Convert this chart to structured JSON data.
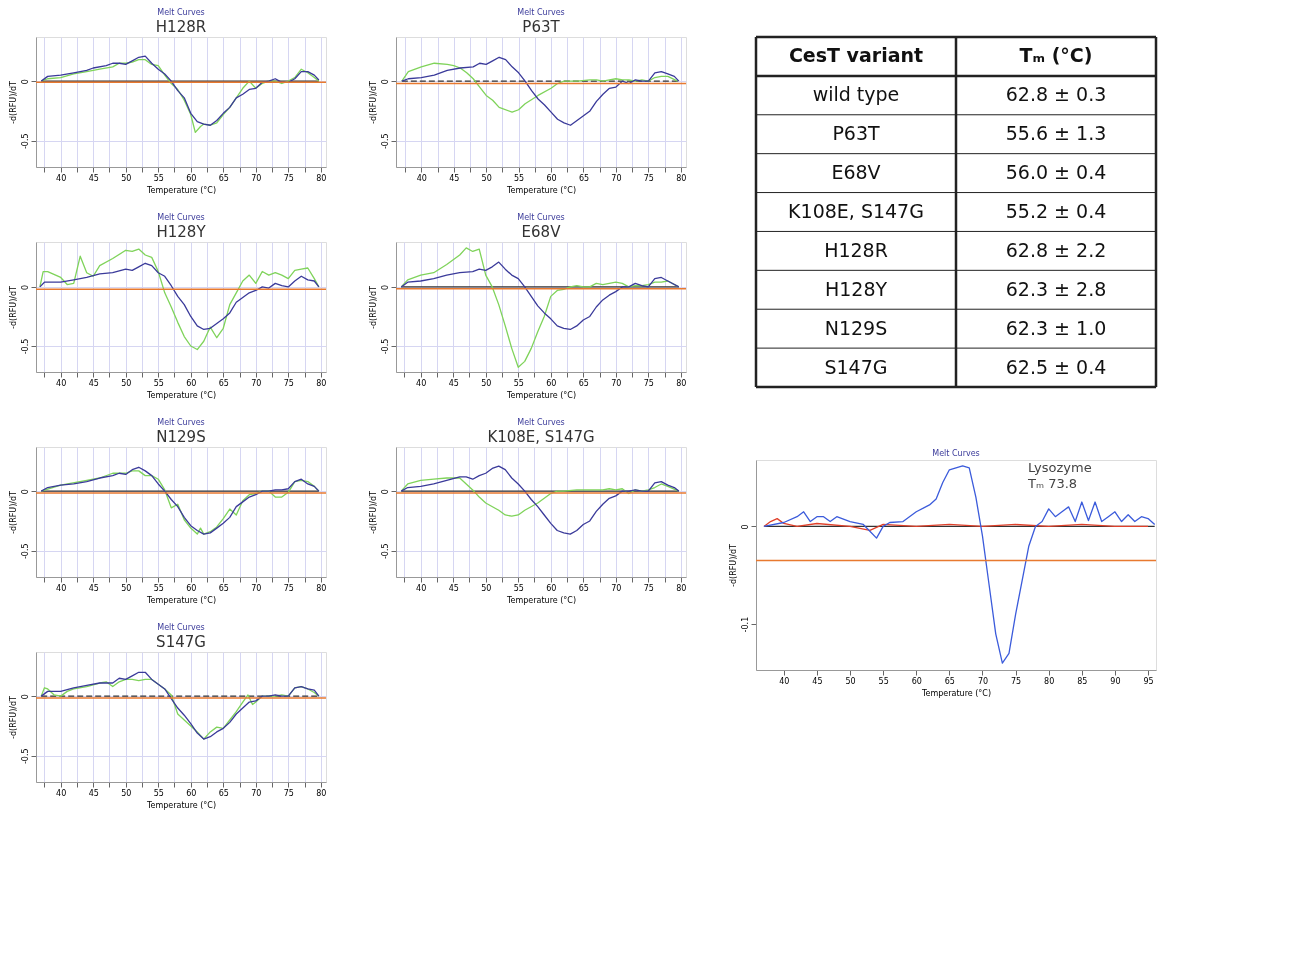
{
  "chart_data": [
    {
      "type": "line",
      "title": "Melt Curves",
      "subtitle": "H128R",
      "xlabel": "Temperature (°C)",
      "ylabel": "-d(RFU)/dT",
      "xlim": [
        36.2,
        80.8
      ],
      "ylim": [
        -0.72,
        0.37
      ],
      "grid": true,
      "xticks": [
        {
          "value": 37.5,
          "label": null
        },
        40,
        {
          "value": 42.5,
          "label": null
        },
        45,
        {
          "value": 47.5,
          "label": null
        },
        50,
        {
          "value": 52.5,
          "label": null
        },
        55,
        {
          "value": 57.5,
          "label": null
        },
        60,
        {
          "value": 62.5,
          "label": null
        },
        65,
        {
          "value": 67.5,
          "label": null
        },
        70,
        {
          "value": 72.5,
          "label": null
        },
        75,
        {
          "value": 77.5,
          "label": null
        },
        80
      ],
      "yticks": [
        0,
        -0.5
      ],
      "ref_lines": [
        {
          "axis": "y",
          "value": -0.01,
          "color": "#e8792f",
          "line_style": "solid"
        }
      ],
      "series": [
        {
          "color": "#333333",
          "line_style": "solid",
          "x": [
            37,
            79.7
          ],
          "values": [
            0,
            0
          ]
        },
        {
          "color": "#7fd35a",
          "line_style": "solid",
          "x": [
            37,
            38,
            40,
            42,
            44,
            46,
            48,
            49,
            50,
            51,
            52,
            53,
            54,
            55,
            56,
            57,
            58,
            59,
            60,
            60.7,
            61.5,
            62,
            63,
            64,
            65,
            66,
            67,
            68,
            69,
            70,
            71,
            72,
            73,
            74,
            75,
            76,
            77,
            78,
            79,
            79.7
          ],
          "values": [
            0,
            0.02,
            0.03,
            0.06,
            0.08,
            0.1,
            0.12,
            0.15,
            0.15,
            0.16,
            0.18,
            0.18,
            0.14,
            0.13,
            0.05,
            -0.02,
            -0.07,
            -0.16,
            -0.28,
            -0.43,
            -0.38,
            -0.36,
            -0.37,
            -0.35,
            -0.28,
            -0.22,
            -0.14,
            -0.06,
            0,
            -0.06,
            -0.02,
            0,
            0,
            -0.02,
            0,
            0.03,
            0.1,
            0.07,
            0.03,
            0
          ]
        },
        {
          "color": "#3a3a9a",
          "line_style": "solid",
          "x": [
            37,
            38,
            40,
            42,
            44,
            45,
            47,
            48,
            49,
            50,
            51,
            52,
            53,
            54,
            55,
            56,
            57,
            58,
            59,
            60,
            61,
            62,
            63,
            64,
            65,
            66,
            67,
            68,
            69,
            70,
            71,
            72,
            73,
            74,
            75,
            76,
            77,
            78,
            79,
            79.7
          ],
          "values": [
            0,
            0.04,
            0.05,
            0.07,
            0.09,
            0.11,
            0.13,
            0.15,
            0.15,
            0.14,
            0.17,
            0.2,
            0.21,
            0.15,
            0.1,
            0.06,
            0,
            -0.08,
            -0.14,
            -0.27,
            -0.34,
            -0.36,
            -0.37,
            -0.33,
            -0.27,
            -0.22,
            -0.14,
            -0.11,
            -0.07,
            -0.06,
            -0.01,
            0,
            0.02,
            -0.01,
            -0.01,
            0.02,
            0.08,
            0.08,
            0.05,
            0.01
          ]
        }
      ]
    },
    {
      "type": "line",
      "title": "Melt Curves",
      "subtitle": "P63T",
      "xlabel": "Temperature (°C)",
      "ylabel": "-d(RFU)/dT",
      "xlim": [
        36.1,
        80.8
      ],
      "ylim": [
        -0.72,
        0.37
      ],
      "grid": true,
      "xticks": [
        {
          "value": 37.5,
          "label": null
        },
        40,
        {
          "value": 42.5,
          "label": null
        },
        45,
        {
          "value": 47.5,
          "label": null
        },
        50,
        {
          "value": 52.5,
          "label": null
        },
        55,
        {
          "value": 57.5,
          "label": null
        },
        60,
        {
          "value": 62.5,
          "label": null
        },
        65,
        {
          "value": 67.5,
          "label": null
        },
        70,
        {
          "value": 72.5,
          "label": null
        },
        75,
        {
          "value": 77.5,
          "label": null
        },
        80
      ],
      "yticks": [
        0,
        -0.5
      ],
      "ref_lines": [
        {
          "axis": "y",
          "value": -0.02,
          "color": "#e8792f",
          "line_style": "solid"
        }
      ],
      "series": [
        {
          "color": "#333333",
          "line_style": "dashed",
          "x": [
            37,
            79.7
          ],
          "values": [
            0,
            0
          ]
        },
        {
          "color": "#7fd35a",
          "line_style": "solid",
          "x": [
            37,
            38,
            40,
            42,
            44,
            45,
            46,
            47,
            48,
            49,
            50,
            51,
            52,
            54,
            55,
            56,
            58,
            60,
            61,
            62,
            64,
            66,
            67,
            68,
            69,
            70,
            71,
            72,
            73,
            74,
            75,
            76,
            77,
            78,
            79.5
          ],
          "values": [
            0,
            0.08,
            0.12,
            0.15,
            0.14,
            0.13,
            0.11,
            0.07,
            0.02,
            -0.05,
            -0.12,
            -0.16,
            -0.22,
            -0.26,
            -0.24,
            -0.19,
            -0.12,
            -0.06,
            -0.02,
            0,
            0,
            0.01,
            0.01,
            0,
            0.01,
            0.02,
            0.01,
            0.01,
            0,
            0.01,
            0,
            0.03,
            0.04,
            0.04,
            0
          ]
        },
        {
          "color": "#3a3a9a",
          "line_style": "solid",
          "x": [
            37,
            38,
            40,
            42,
            44,
            46,
            48,
            49,
            50,
            51,
            52,
            53,
            54,
            55,
            56,
            57,
            58,
            59,
            60,
            61,
            62,
            63,
            64,
            65,
            66,
            67,
            68,
            69,
            70,
            71,
            72,
            73,
            74,
            75,
            76,
            77,
            78,
            79,
            79.7
          ],
          "values": [
            0,
            0.02,
            0.03,
            0.05,
            0.09,
            0.11,
            0.12,
            0.15,
            0.14,
            0.17,
            0.2,
            0.18,
            0.12,
            0.07,
            0,
            -0.08,
            -0.15,
            -0.2,
            -0.26,
            -0.32,
            -0.35,
            -0.37,
            -0.33,
            -0.29,
            -0.25,
            -0.17,
            -0.11,
            -0.06,
            -0.05,
            0,
            -0.02,
            0.01,
            0,
            0,
            0.07,
            0.08,
            0.06,
            0.04,
            0
          ]
        }
      ]
    },
    {
      "type": "other",
      "xlabel": "CesT variant",
      "ylabel": "Tₘ (°C)",
      "categories": [
        "wild type",
        "P63T",
        "E68V",
        "K108E, S147G",
        "H128R",
        "H128Y",
        "N129S",
        "S147G"
      ],
      "value_labels": [
        "62.8 ± 0.3",
        "55.6 ± 1.3",
        "56.0 ± 0.4",
        "55.2 ± 0.4",
        "62.8 ± 2.2",
        "62.3 ± 2.8",
        "62.3 ± 1.0",
        "62.5 ± 0.4"
      ]
    },
    {
      "type": "line",
      "title": "Melt Curves",
      "subtitle": "H128Y",
      "xlabel": "Temperature (°C)",
      "ylabel": "-d(RFU)/dT",
      "xlim": [
        36.2,
        80.8
      ],
      "ylim": [
        -0.72,
        0.38
      ],
      "grid": true,
      "xticks": [
        {
          "value": 37.5,
          "label": null
        },
        40,
        {
          "value": 42.5,
          "label": null
        },
        45,
        {
          "value": 47.5,
          "label": null
        },
        50,
        {
          "value": 52.5,
          "label": null
        },
        55,
        {
          "value": 57.5,
          "label": null
        },
        60,
        {
          "value": 62.5,
          "label": null
        },
        65,
        {
          "value": 67.5,
          "label": null
        },
        70,
        {
          "value": 72.5,
          "label": null
        },
        75,
        {
          "value": 77.5,
          "label": null
        },
        80
      ],
      "yticks": [
        0,
        -0.5
      ],
      "ref_lines": [
        {
          "axis": "y",
          "value": -0.02,
          "color": "#e8792f",
          "line_style": "solid"
        }
      ],
      "series": [
        {
          "color": "#7fd35a",
          "line_style": "solid",
          "x": [
            36.8,
            37.3,
            38,
            40,
            41,
            42,
            43,
            44,
            45,
            46,
            48,
            50,
            51,
            52,
            53,
            54,
            55,
            56,
            57,
            58,
            59,
            60,
            61,
            62,
            63,
            64,
            65,
            66,
            67,
            68,
            69,
            70,
            71,
            72,
            73,
            74,
            75,
            76,
            77,
            78,
            79,
            79.7
          ],
          "values": [
            0,
            0.13,
            0.13,
            0.08,
            0.02,
            0.03,
            0.26,
            0.12,
            0.09,
            0.18,
            0.24,
            0.31,
            0.3,
            0.32,
            0.27,
            0.25,
            0.13,
            -0.05,
            -0.17,
            -0.3,
            -0.42,
            -0.5,
            -0.53,
            -0.46,
            -0.34,
            -0.43,
            -0.35,
            -0.15,
            -0.05,
            0.05,
            0.1,
            0.03,
            0.13,
            0.1,
            0.12,
            0.1,
            0.07,
            0.14,
            0.15,
            0.16,
            0.07,
            0
          ]
        },
        {
          "color": "#3a3a9a",
          "line_style": "solid",
          "x": [
            36.8,
            37.5,
            40,
            42,
            44,
            46,
            48,
            50,
            51,
            52,
            53,
            54,
            55,
            56,
            57,
            58,
            59,
            60,
            61,
            62,
            63,
            64,
            65,
            66,
            67,
            68,
            69,
            70,
            71,
            72,
            73,
            74,
            75,
            76,
            77,
            78,
            79,
            79.7
          ],
          "values": [
            0,
            0.04,
            0.04,
            0.06,
            0.08,
            0.11,
            0.12,
            0.15,
            0.14,
            0.17,
            0.2,
            0.18,
            0.12,
            0.09,
            0.01,
            -0.08,
            -0.15,
            -0.25,
            -0.33,
            -0.36,
            -0.35,
            -0.31,
            -0.27,
            -0.22,
            -0.13,
            -0.09,
            -0.05,
            -0.03,
            0,
            -0.01,
            0.03,
            0.01,
            0,
            0.05,
            0.09,
            0.06,
            0.05,
            0
          ]
        }
      ]
    },
    {
      "type": "line",
      "title": "Melt Curves",
      "subtitle": "E68V",
      "xlabel": "Temperature (°C)",
      "ylabel": "-d(RFU)/dT",
      "xlim": [
        36.2,
        80.8
      ],
      "ylim": [
        -0.72,
        0.38
      ],
      "grid": true,
      "xticks": [
        {
          "value": 37.5,
          "label": null
        },
        40,
        {
          "value": 42.5,
          "label": null
        },
        45,
        {
          "value": 47.5,
          "label": null
        },
        50,
        {
          "value": 52.5,
          "label": null
        },
        55,
        {
          "value": 57.5,
          "label": null
        },
        60,
        {
          "value": 62.5,
          "label": null
        },
        65,
        {
          "value": 67.5,
          "label": null
        },
        70,
        {
          "value": 72.5,
          "label": null
        },
        75,
        {
          "value": 77.5,
          "label": null
        },
        80
      ],
      "yticks": [
        0,
        -0.5
      ],
      "ref_lines": [
        {
          "axis": "y",
          "value": -0.015,
          "color": "#e8792f",
          "line_style": "solid"
        }
      ],
      "series": [
        {
          "color": "#333333",
          "line_style": "solid",
          "x": [
            37,
            79.7
          ],
          "values": [
            0,
            0
          ]
        },
        {
          "color": "#7fd35a",
          "line_style": "solid",
          "x": [
            37,
            38,
            40,
            42,
            44,
            46,
            47,
            48,
            49,
            50,
            51,
            52,
            53,
            54,
            55,
            56,
            57,
            58,
            59,
            60,
            61,
            62,
            63,
            64,
            65,
            66,
            67,
            68,
            69,
            70,
            71,
            72,
            73,
            74,
            75,
            76,
            77,
            78,
            79.7
          ],
          "values": [
            0,
            0.06,
            0.1,
            0.12,
            0.19,
            0.27,
            0.33,
            0.3,
            0.32,
            0.1,
            0,
            -0.15,
            -0.33,
            -0.52,
            -0.68,
            -0.63,
            -0.52,
            -0.38,
            -0.25,
            -0.08,
            -0.03,
            -0.02,
            0,
            0.01,
            0,
            0,
            0.03,
            0.02,
            0.03,
            0.04,
            0.03,
            0,
            0.01,
            0.01,
            0.02,
            0.04,
            0.04,
            0.05,
            0
          ]
        },
        {
          "color": "#3a3a9a",
          "line_style": "solid",
          "x": [
            37,
            38,
            40,
            42,
            44,
            46,
            48,
            49,
            50,
            51,
            52,
            53,
            54,
            55,
            56,
            57,
            58,
            59,
            60,
            61,
            62,
            63,
            64,
            65,
            66,
            67,
            68,
            69,
            70,
            71,
            72,
            73,
            74,
            75,
            76,
            77,
            78,
            79.7
          ],
          "values": [
            0,
            0.04,
            0.05,
            0.07,
            0.1,
            0.12,
            0.13,
            0.15,
            0.14,
            0.17,
            0.21,
            0.15,
            0.1,
            0.07,
            0,
            -0.08,
            -0.16,
            -0.22,
            -0.27,
            -0.33,
            -0.35,
            -0.36,
            -0.33,
            -0.28,
            -0.25,
            -0.17,
            -0.11,
            -0.07,
            -0.04,
            0,
            0,
            0.03,
            0.01,
            0,
            0.07,
            0.08,
            0.05,
            0
          ]
        }
      ]
    },
    {
      "type": "line",
      "title": "Melt Curves",
      "subtitle": "N129S",
      "xlabel": "Temperature (°C)",
      "ylabel": "-d(RFU)/dT",
      "xlim": [
        36.2,
        80.8
      ],
      "ylim": [
        -0.72,
        0.37
      ],
      "grid": true,
      "xticks": [
        {
          "value": 37.5,
          "label": null
        },
        40,
        {
          "value": 42.5,
          "label": null
        },
        45,
        {
          "value": 47.5,
          "label": null
        },
        50,
        {
          "value": 52.5,
          "label": null
        },
        55,
        {
          "value": 57.5,
          "label": null
        },
        60,
        {
          "value": 62.5,
          "label": null
        },
        65,
        {
          "value": 67.5,
          "label": null
        },
        70,
        {
          "value": 72.5,
          "label": null
        },
        75,
        {
          "value": 77.5,
          "label": null
        },
        80
      ],
      "yticks": [
        0,
        -0.5
      ],
      "ref_lines": [
        {
          "axis": "y",
          "value": -0.015,
          "color": "#e8792f",
          "line_style": "solid"
        }
      ],
      "series": [
        {
          "color": "#333333",
          "line_style": "solid",
          "x": [
            37,
            79.7
          ],
          "values": [
            0,
            0
          ]
        },
        {
          "color": "#7fd35a",
          "line_style": "solid",
          "x": [
            37,
            40,
            44,
            46,
            48,
            50,
            51,
            52,
            53,
            54,
            55,
            56,
            57,
            58,
            59,
            60,
            61,
            61.5,
            62,
            63,
            64,
            65,
            66,
            67,
            68,
            69,
            70,
            71,
            72,
            73,
            74,
            75,
            76,
            77,
            78,
            79,
            79.7
          ],
          "values": [
            0,
            0.05,
            0.09,
            0.11,
            0.15,
            0.15,
            0.17,
            0.17,
            0.13,
            0.13,
            0.1,
            0.01,
            -0.14,
            -0.11,
            -0.24,
            -0.31,
            -0.36,
            -0.31,
            -0.36,
            -0.34,
            -0.3,
            -0.23,
            -0.15,
            -0.2,
            -0.08,
            -0.03,
            -0.02,
            0,
            0,
            -0.05,
            -0.05,
            -0.01,
            0.08,
            0.09,
            0.08,
            0.04,
            0
          ]
        },
        {
          "color": "#3a3a9a",
          "line_style": "solid",
          "x": [
            37,
            38,
            40,
            42,
            44,
            46,
            48,
            49,
            50,
            51,
            52,
            53,
            54,
            55,
            56,
            57,
            58,
            59,
            60,
            61,
            62,
            63,
            64,
            65,
            66,
            67,
            68,
            69,
            70,
            71,
            72,
            73,
            74,
            75,
            76,
            77,
            78,
            79,
            79.7
          ],
          "values": [
            0,
            0.03,
            0.05,
            0.06,
            0.08,
            0.11,
            0.13,
            0.15,
            0.14,
            0.18,
            0.2,
            0.17,
            0.13,
            0.06,
            0,
            -0.07,
            -0.13,
            -0.22,
            -0.29,
            -0.33,
            -0.36,
            -0.35,
            -0.31,
            -0.27,
            -0.22,
            -0.13,
            -0.09,
            -0.05,
            -0.03,
            0,
            0,
            0.01,
            0.01,
            0.02,
            0.08,
            0.1,
            0.06,
            0.04,
            0
          ]
        }
      ]
    },
    {
      "type": "line",
      "title": "Melt Curves",
      "subtitle": "K108E, S147G",
      "xlabel": "Temperature (°C)",
      "ylabel": "-d(RFU)/dT",
      "xlim": [
        36.2,
        80.8
      ],
      "ylim": [
        -0.72,
        0.37
      ],
      "grid": true,
      "xticks": [
        {
          "value": 37.5,
          "label": null
        },
        40,
        {
          "value": 42.5,
          "label": null
        },
        45,
        {
          "value": 47.5,
          "label": null
        },
        50,
        {
          "value": 52.5,
          "label": null
        },
        55,
        {
          "value": 57.5,
          "label": null
        },
        60,
        {
          "value": 62.5,
          "label": null
        },
        65,
        {
          "value": 67.5,
          "label": null
        },
        70,
        {
          "value": 72.5,
          "label": null
        },
        75,
        {
          "value": 77.5,
          "label": null
        },
        80
      ],
      "yticks": [
        0,
        -0.5
      ],
      "ref_lines": [
        {
          "axis": "y",
          "value": -0.015,
          "color": "#e8792f",
          "line_style": "solid"
        }
      ],
      "series": [
        {
          "color": "#333333",
          "line_style": "solid",
          "x": [
            37,
            79.7
          ],
          "values": [
            0,
            0
          ]
        },
        {
          "color": "#7fd35a",
          "line_style": "solid",
          "x": [
            37,
            38,
            40,
            42,
            44,
            46,
            47,
            48,
            49,
            50,
            52,
            53,
            54,
            55,
            56,
            58,
            59,
            60,
            61,
            62,
            64,
            66,
            68,
            69,
            70,
            71,
            72,
            73,
            74,
            75,
            76,
            77,
            78,
            79.7
          ],
          "values": [
            0,
            0.06,
            0.09,
            0.1,
            0.11,
            0.11,
            0.06,
            0.01,
            -0.05,
            -0.1,
            -0.16,
            -0.2,
            -0.21,
            -0.2,
            -0.16,
            -0.1,
            -0.06,
            -0.02,
            0,
            0,
            0.01,
            0.01,
            0.01,
            0.02,
            0.01,
            0.02,
            -0.02,
            0.01,
            0,
            0.01,
            0.03,
            0.06,
            0.04,
            0
          ]
        },
        {
          "color": "#3a3a9a",
          "line_style": "solid",
          "x": [
            37,
            38,
            40,
            42,
            44,
            46,
            47,
            48,
            49,
            50,
            51,
            52,
            53,
            54,
            55,
            56,
            57,
            58,
            59,
            60,
            61,
            62,
            63,
            64,
            65,
            66,
            67,
            68,
            69,
            70,
            71,
            72,
            73,
            74,
            75,
            76,
            77,
            78,
            79,
            79.7
          ],
          "values": [
            0,
            0.03,
            0.04,
            0.06,
            0.09,
            0.12,
            0.12,
            0.1,
            0.13,
            0.15,
            0.19,
            0.21,
            0.18,
            0.11,
            0.06,
            0,
            -0.07,
            -0.13,
            -0.2,
            -0.27,
            -0.33,
            -0.35,
            -0.36,
            -0.33,
            -0.28,
            -0.25,
            -0.17,
            -0.11,
            -0.06,
            -0.04,
            0,
            0,
            0.01,
            0,
            0,
            0.07,
            0.08,
            0.05,
            0.03,
            0
          ]
        }
      ]
    },
    {
      "type": "line",
      "title": "Melt Curves",
      "xlabel": "Temperature (°C)",
      "ylabel": "-d(RFU)/dT",
      "xlim": [
        35.8,
        96.2
      ],
      "ylim": [
        -0.147,
        0.068
      ],
      "grid": false,
      "annotations": [
        "Lysozyme",
        "Tₘ 73.8"
      ],
      "xticks": [
        40,
        45,
        50,
        55,
        60,
        65,
        70,
        75,
        80,
        85,
        90,
        95
      ],
      "yticks": [
        0,
        -0.1
      ],
      "ref_lines": [
        {
          "axis": "y",
          "value": -0.035,
          "color": "#e8792f",
          "line_style": "solid"
        }
      ],
      "series": [
        {
          "color": "#333333",
          "line_style": "solid",
          "x": [
            37,
            96
          ],
          "values": [
            0,
            0
          ]
        },
        {
          "color": "#e0402a",
          "line_style": "solid",
          "x": [
            37,
            38,
            39,
            40,
            42,
            45,
            50,
            53,
            55,
            60,
            65,
            70,
            75,
            80,
            85,
            90,
            95
          ],
          "values": [
            0,
            0.005,
            0.008,
            0.003,
            0,
            0.003,
            0,
            -0.004,
            0.002,
            0,
            0.002,
            0,
            0.002,
            0,
            0.002,
            0,
            0
          ]
        },
        {
          "color": "#3b5bdb",
          "line_style": "solid",
          "x": [
            37,
            40,
            42,
            43,
            44,
            45,
            46,
            47,
            48,
            50,
            52,
            53,
            54,
            55,
            56,
            58,
            60,
            62,
            63,
            64,
            65,
            66,
            67,
            68,
            69,
            70,
            71,
            72,
            73,
            74,
            75,
            76,
            77,
            78,
            79,
            80,
            81,
            82,
            83,
            84,
            85,
            86,
            87,
            88,
            89,
            90,
            91,
            92,
            93,
            94,
            95,
            96
          ],
          "values": [
            0,
            0.004,
            0.01,
            0.015,
            0.005,
            0.01,
            0.01,
            0.005,
            0.01,
            0.005,
            0.002,
            -0.005,
            -0.012,
            0,
            0.004,
            0.005,
            0.015,
            0.022,
            0.028,
            0.045,
            0.058,
            0.06,
            0.062,
            0.06,
            0.03,
            -0.01,
            -0.06,
            -0.11,
            -0.14,
            -0.13,
            -0.09,
            -0.055,
            -0.02,
            0,
            0.005,
            0.018,
            0.01,
            0.015,
            0.02,
            0.005,
            0.025,
            0.006,
            0.025,
            0.005,
            0.01,
            0.015,
            0.005,
            0.012,
            0.005,
            0.01,
            0.008,
            0.002
          ]
        }
      ]
    },
    {
      "type": "line",
      "title": "Melt Curves",
      "subtitle": "S147G",
      "xlabel": "Temperature (°C)",
      "ylabel": "-d(RFU)/dT",
      "xlim": [
        36.2,
        80.8
      ],
      "ylim": [
        -0.72,
        0.37
      ],
      "grid": true,
      "xticks": [
        {
          "value": 37.5,
          "label": null
        },
        40,
        {
          "value": 42.5,
          "label": null
        },
        45,
        {
          "value": 47.5,
          "label": null
        },
        50,
        {
          "value": 52.5,
          "label": null
        },
        55,
        {
          "value": 57.5,
          "label": null
        },
        60,
        {
          "value": 62.5,
          "label": null
        },
        65,
        {
          "value": 67.5,
          "label": null
        },
        70,
        {
          "value": 72.5,
          "label": null
        },
        75,
        {
          "value": 77.5,
          "label": null
        },
        80
      ],
      "yticks": [
        0,
        -0.5
      ],
      "ref_lines": [
        {
          "axis": "y",
          "value": -0.015,
          "color": "#e8792f",
          "line_style": "solid"
        }
      ],
      "series": [
        {
          "color": "#333333",
          "line_style": "dashed",
          "x": [
            37,
            79.7
          ],
          "values": [
            0,
            0
          ]
        },
        {
          "color": "#7fd35a",
          "line_style": "solid",
          "x": [
            37,
            37.5,
            38,
            39,
            40,
            41,
            42,
            44,
            46,
            47,
            48,
            49,
            50,
            51,
            52,
            53,
            54,
            55,
            56,
            57,
            58,
            59,
            60,
            61,
            62,
            63,
            64,
            65,
            66,
            67,
            68,
            68.8,
            69.5,
            70,
            71,
            72,
            73,
            74,
            75,
            76,
            77,
            78,
            79,
            79.7
          ],
          "values": [
            0,
            0.07,
            0.06,
            0.01,
            0,
            0.04,
            0.06,
            0.08,
            0.11,
            0.12,
            0.08,
            0.12,
            0.14,
            0.14,
            0.13,
            0.14,
            0.14,
            0.1,
            0.06,
            0.01,
            -0.15,
            -0.2,
            -0.25,
            -0.3,
            -0.36,
            -0.3,
            -0.26,
            -0.27,
            -0.2,
            -0.13,
            -0.05,
            0.01,
            -0.07,
            -0.05,
            0,
            0,
            0,
            0.01,
            0,
            0.07,
            0.08,
            0.06,
            0.03,
            0
          ]
        },
        {
          "color": "#3a3a9a",
          "line_style": "solid",
          "x": [
            37,
            38,
            40,
            42,
            44,
            46,
            48,
            49,
            50,
            51,
            52,
            53,
            54,
            55,
            56,
            57,
            58,
            59,
            60,
            61,
            62,
            63,
            64,
            65,
            66,
            67,
            68,
            69,
            70,
            71,
            72,
            73,
            74,
            75,
            76,
            77,
            78,
            79,
            79.7
          ],
          "values": [
            0,
            0.04,
            0.04,
            0.07,
            0.09,
            0.11,
            0.11,
            0.15,
            0.14,
            0.17,
            0.2,
            0.2,
            0.14,
            0.1,
            0.06,
            -0.02,
            -0.1,
            -0.16,
            -0.23,
            -0.31,
            -0.36,
            -0.34,
            -0.3,
            -0.27,
            -0.22,
            -0.15,
            -0.1,
            -0.05,
            -0.04,
            0,
            0,
            0.01,
            0,
            0,
            0.07,
            0.08,
            0.06,
            0.05,
            0
          ]
        }
      ]
    }
  ]
}
